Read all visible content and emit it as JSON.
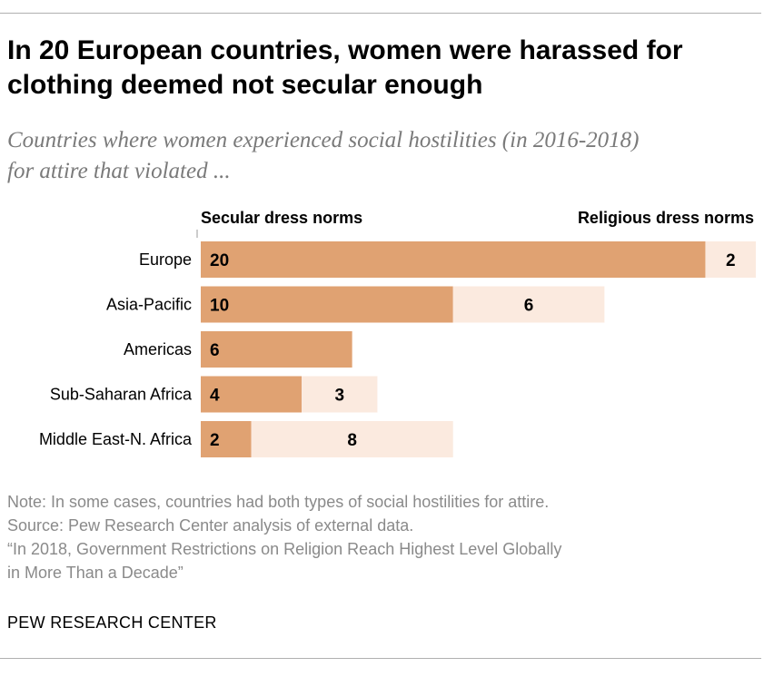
{
  "title": "In 20 European countries, women were harassed for clothing deemed not secular enough",
  "subtitle": "Countries where women experienced social hostilities (in 2016-2018) for attire that violated ...",
  "colors": {
    "secular": "#e0a272",
    "religious": "#fbeadf",
    "text": "#000000",
    "notes": "#8a8a8a"
  },
  "chart_data": {
    "type": "bar",
    "orientation": "horizontal",
    "stacked": true,
    "categories": [
      "Europe",
      "Asia-Pacific",
      "Americas",
      "Sub-Saharan Africa",
      "Middle East-N. Africa"
    ],
    "series": [
      {
        "name": "Secular dress norms",
        "values": [
          20,
          10,
          6,
          4,
          2
        ]
      },
      {
        "name": "Religious dress norms",
        "values": [
          2,
          6,
          0,
          3,
          8
        ]
      }
    ],
    "xlim": [
      0,
      22
    ],
    "grid": false,
    "legend": "top"
  },
  "notes": {
    "note": "Note: In some cases, countries had both types of social hostilities for attire.",
    "source": "Source: Pew Research Center analysis of external data.",
    "report_line1": "“In 2018, Government Restrictions on Religion Reach Highest Level Globally",
    "report_line2": "in More Than a Decade”"
  },
  "brand": "PEW RESEARCH CENTER"
}
